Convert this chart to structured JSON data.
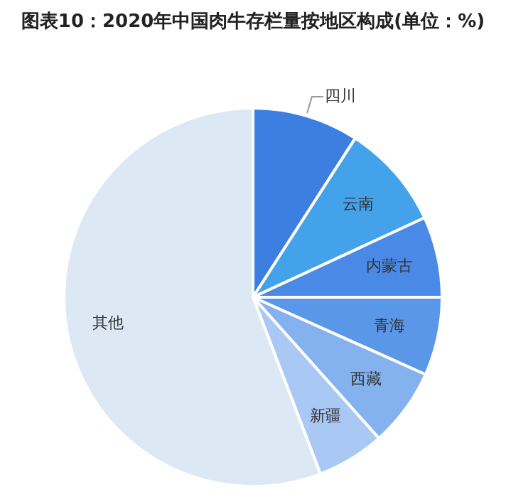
{
  "chart_data": {
    "type": "pie",
    "title": "图表10：2020年中国肉牛存栏量按地区构成(单位：%)",
    "categories": [
      "四川",
      "云南",
      "内蒙古",
      "青海",
      "西藏",
      "新疆",
      "其他"
    ],
    "values": [
      9.1,
      9.0,
      6.9,
      6.7,
      6.7,
      5.8,
      55.8
    ],
    "colors": [
      "#3c7fe0",
      "#44a2ea",
      "#4a8ae6",
      "#5b97e9",
      "#84b2ef",
      "#a9c9f4",
      "#dde8f5"
    ],
    "legend": false
  }
}
